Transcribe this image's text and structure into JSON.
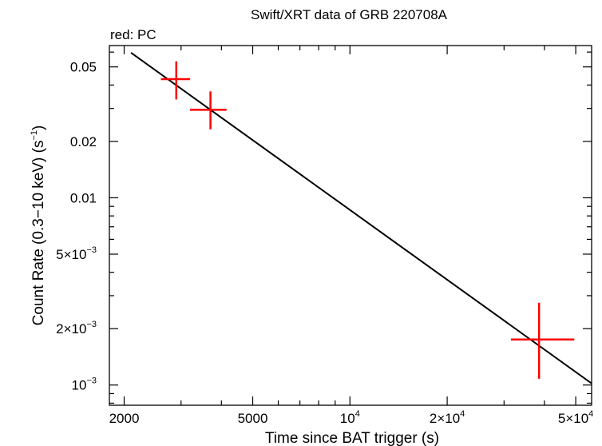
{
  "chart_data": {
    "type": "scatter",
    "title": "Swift/XRT data of GRB 220708A",
    "subtitle": "red: PC",
    "xlabel": "Time since BAT trigger (s)",
    "ylabel": "Count Rate (0.3−10 keV) (s",
    "ylabel_exp": "−1",
    "ylabel_close": ")",
    "xscale": "log",
    "yscale": "log",
    "xlim": [
      1800,
      56000
    ],
    "ylim": [
      0.00078,
      0.065
    ],
    "x_ticks": [
      {
        "value": 2000,
        "base": "2000",
        "exp": ""
      },
      {
        "value": 5000,
        "base": "5000",
        "exp": ""
      },
      {
        "value": 10000,
        "base": "10",
        "exp": "4"
      },
      {
        "value": 20000,
        "base": "2×10",
        "exp": "4"
      },
      {
        "value": 50000,
        "base": "5×10",
        "exp": "4"
      }
    ],
    "y_ticks": [
      {
        "value": 0.05,
        "base": "0.05",
        "exp": ""
      },
      {
        "value": 0.02,
        "base": "0.02",
        "exp": ""
      },
      {
        "value": 0.01,
        "base": "0.01",
        "exp": ""
      },
      {
        "value": 0.005,
        "base": "5×10",
        "exp": "−3"
      },
      {
        "value": 0.002,
        "base": "2×10",
        "exp": "−3"
      },
      {
        "value": 0.001,
        "base": "10",
        "exp": "−3"
      }
    ],
    "series": [
      {
        "name": "PC",
        "color": "#ff0000",
        "points": [
          {
            "x": 2900,
            "y": 0.043,
            "xerr": [
              2600,
              3200
            ],
            "yerr": [
              0.0335,
              0.0535
            ]
          },
          {
            "x": 3700,
            "y": 0.0295,
            "xerr": [
              3200,
              4150
            ],
            "yerr": [
              0.0232,
              0.037
            ]
          },
          {
            "x": 38500,
            "y": 0.00175,
            "xerr": [
              31500,
              49500
            ],
            "yerr": [
              0.00108,
              0.00275
            ]
          }
        ]
      }
    ],
    "model": {
      "name": "power-law fit",
      "color": "#000000",
      "x": [
        2100,
        56000
      ],
      "y": [
        0.0595,
        0.00102
      ]
    }
  }
}
